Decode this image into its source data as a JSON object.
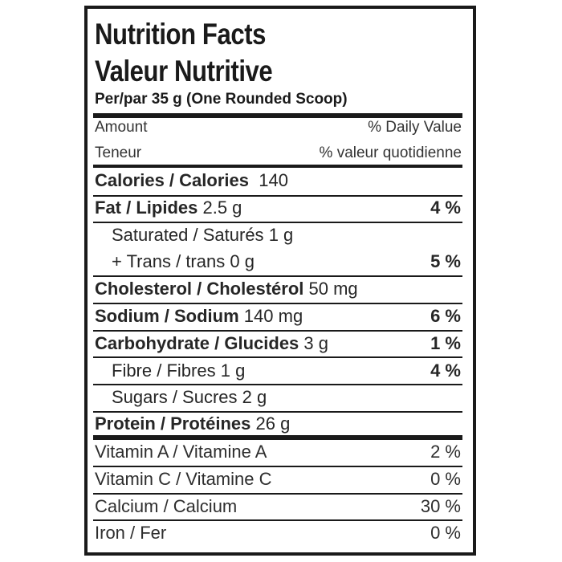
{
  "header": {
    "title_en": "Nutrition Facts",
    "title_fr": "Valeur Nutritive",
    "serving": "Per/par 35 g (One Rounded Scoop)",
    "amount_en": "Amount",
    "dv_en": "% Daily Value",
    "amount_fr": "Teneur",
    "dv_fr": "% valeur quotidienne"
  },
  "calories": {
    "label": "Calories / Calories",
    "value": "140"
  },
  "nutrients": [
    {
      "label": "Fat / Lipides",
      "amount": "2.5 g",
      "dv": "4 %",
      "bold": true,
      "indent": false
    },
    {
      "label": "Saturated / Saturés",
      "amount": "1 g",
      "dv": "",
      "bold": false,
      "indent": true
    },
    {
      "label": "+ Trans / trans",
      "amount": "0 g",
      "dv": "5 %",
      "bold": false,
      "indent": true
    },
    {
      "label": "Cholesterol / Cholestérol",
      "amount": "50 mg",
      "dv": "",
      "bold": true,
      "indent": false
    },
    {
      "label": "Sodium / Sodium",
      "amount": "140 mg",
      "dv": "6 %",
      "bold": true,
      "indent": false
    },
    {
      "label": "Carbohydrate / Glucides",
      "amount": "3 g",
      "dv": "1 %",
      "bold": true,
      "indent": false
    },
    {
      "label": "Fibre / Fibres",
      "amount": "1 g",
      "dv": "4 %",
      "bold": false,
      "indent": true
    },
    {
      "label": "Sugars / Sucres",
      "amount": "2 g",
      "dv": "",
      "bold": false,
      "indent": true
    },
    {
      "label": "Protein / Protéines",
      "amount": "26 g",
      "dv": "",
      "bold": true,
      "indent": false
    }
  ],
  "vitamins": [
    {
      "label": "Vitamin A / Vitamine A",
      "dv": "2 %"
    },
    {
      "label": "Vitamin C / Vitamine C",
      "dv": "0 %"
    },
    {
      "label": "Calcium / Calcium",
      "dv": "30 %"
    },
    {
      "label": "Iron / Fer",
      "dv": "0 %"
    }
  ]
}
